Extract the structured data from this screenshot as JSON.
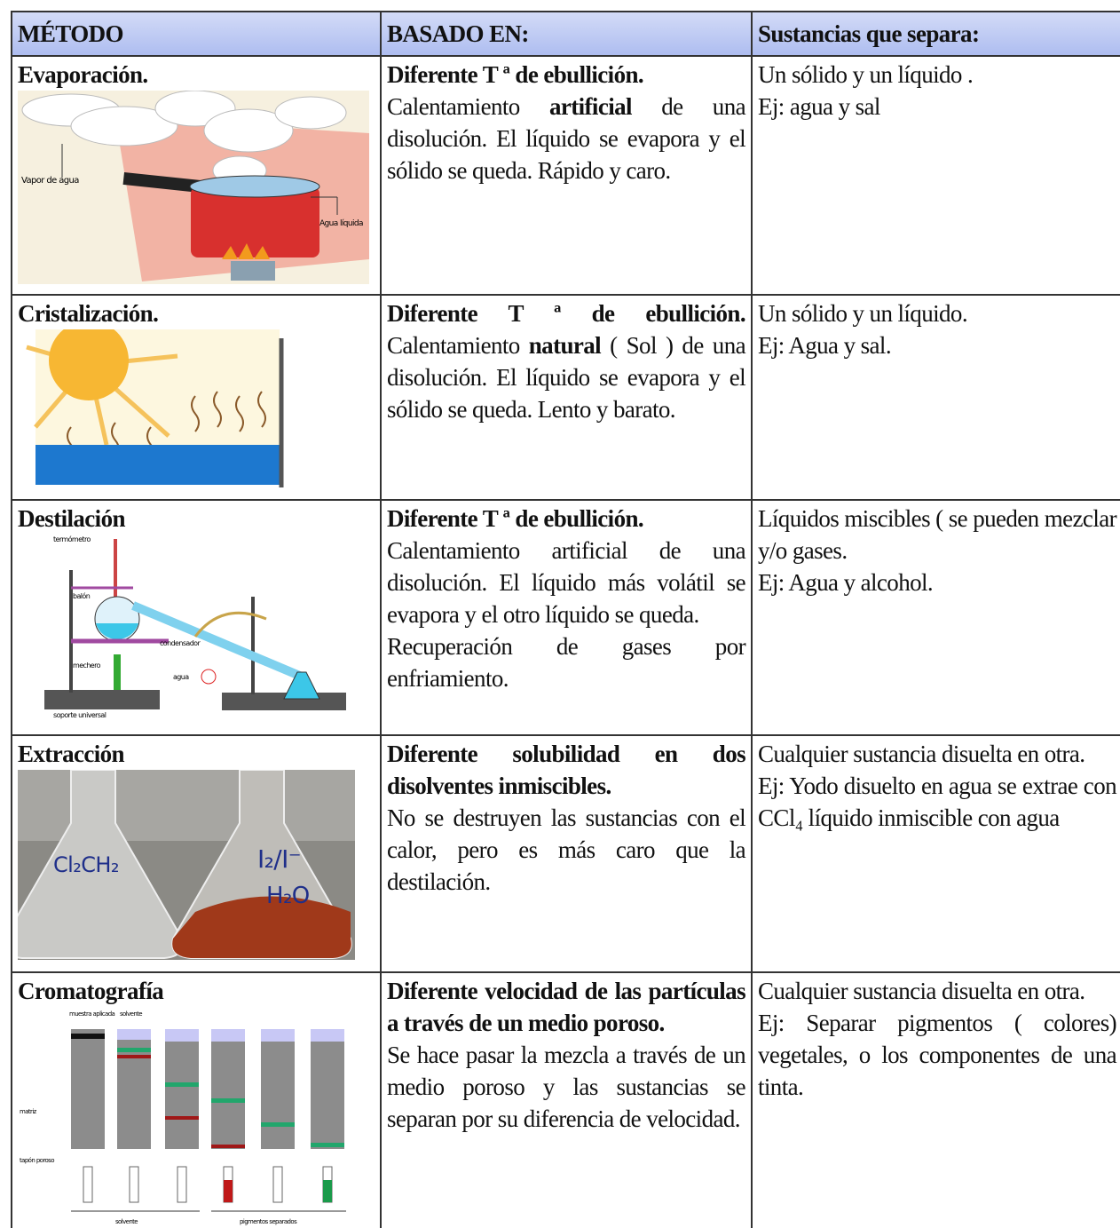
{
  "table": {
    "header": [
      "MÉTODO",
      "BASADO EN:",
      "Sustancias que separa:"
    ],
    "rows": [
      {
        "method": "Evaporación.",
        "image_labels": [
          "Vapor de agua",
          "Agua líquida"
        ],
        "basis": [
          [
            {
              "text": "Diferente T ª de ebullición.",
              "bold": true
            }
          ],
          [
            {
              "text": "Calentamiento "
            },
            {
              "text": "artificial",
              "bold": true
            },
            {
              "text": " de una disolución. El líquido se evapora y el sólido se queda. Rápido y caro."
            }
          ]
        ],
        "separates": [
          [
            {
              "text": "Un sólido y un líquido ."
            }
          ],
          [
            {
              "text": "Ej: agua y sal"
            }
          ]
        ]
      },
      {
        "method": "Cristalización.",
        "image_labels": [],
        "basis": [
          [
            {
              "text": "Diferente T ª de ebullición.",
              "bold": true
            },
            {
              "text": " Calentamiento "
            },
            {
              "text": "natural",
              "bold": true
            },
            {
              "text": " ( Sol ) de una disolución. El líquido se evapora y el sólido se queda. Lento y barato."
            }
          ]
        ],
        "separates": [
          [
            {
              "text": "Un sólido y un líquido."
            }
          ],
          [
            {
              "text": "Ej: Agua y sal."
            }
          ]
        ]
      },
      {
        "method": "Destilación",
        "image_labels": [
          "termómetro",
          "balón",
          "condensador",
          "mechero",
          "agua",
          "soporte universal"
        ],
        "basis": [
          [
            {
              "text": "Diferente T ª de ebullición.",
              "bold": true
            }
          ],
          [
            {
              "text": "Calentamiento artificial de una disolución. El líquido más volátil se evapora y el otro líquido se queda."
            }
          ],
          [
            {
              "text": "Recuperación de gases por enfriamiento."
            }
          ]
        ],
        "separates": [
          [
            {
              "text": "Líquidos miscibles ( se pueden mezclar y/o gases."
            }
          ],
          [
            {
              "text": "Ej: Agua y alcohol."
            }
          ]
        ]
      },
      {
        "method": "Extracción",
        "image_labels": [
          "Cl₂CH₂",
          "I₂/I⁻",
          "H₂O"
        ],
        "basis": [
          [
            {
              "text": "Diferente solubilidad en dos disolventes inmiscibles.",
              "bold": true
            }
          ],
          [
            {
              "text": "No se destruyen las sustancias con el calor, pero es más caro que la destilación."
            }
          ]
        ],
        "separates": [
          [
            {
              "text": "Cualquier sustancia disuelta en otra."
            }
          ],
          [
            {
              "text": "Ej: Yodo disuelto en agua se extrae con CCl₄ líquido inmiscible con agua"
            }
          ]
        ]
      },
      {
        "method": "Cromatografía",
        "image_labels": [
          "muestra aplicada",
          "solvente",
          "matriz",
          "tapón poroso",
          "solvente",
          "pigmentos separados"
        ],
        "basis": [
          [
            {
              "text": "Diferente velocidad de las partículas a través de un medio poroso.",
              "bold": true
            }
          ],
          [
            {
              "text": "Se hace pasar la mezcla a través de un medio poroso y las sustancias se separan por su diferencia de velocidad."
            }
          ]
        ],
        "separates": [
          [
            {
              "text": "Cualquier sustancia disuelta en otra."
            }
          ],
          [
            {
              "text": "Ej: Separar pigmentos ( colores) vegetales, o los componentes de una tinta."
            }
          ]
        ]
      }
    ]
  }
}
